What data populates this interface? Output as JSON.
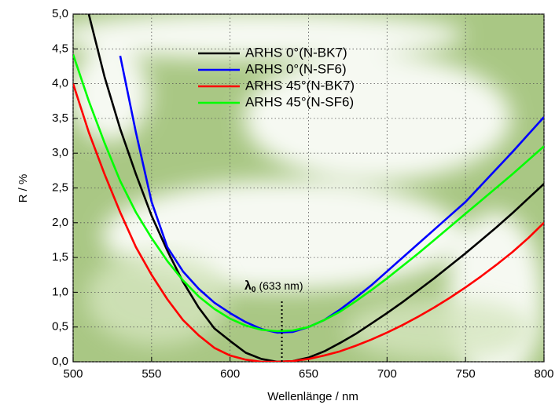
{
  "chart_data": {
    "type": "line",
    "x_label": "Wellenlänge / nm",
    "y_label": "R / %",
    "x": [
      500,
      510,
      520,
      530,
      540,
      550,
      560,
      570,
      580,
      590,
      600,
      610,
      620,
      630,
      640,
      650,
      660,
      670,
      680,
      690,
      700,
      710,
      720,
      730,
      740,
      750,
      760,
      770,
      780,
      790,
      800
    ],
    "series": [
      {
        "name": "ARHS 0°(N-BK7)",
        "color": "#000000",
        "values": [
          null,
          5.0,
          4.1,
          3.35,
          2.7,
          2.1,
          1.6,
          1.15,
          0.78,
          0.48,
          0.3,
          0.13,
          0.04,
          0.0,
          0.01,
          0.06,
          0.15,
          0.27,
          0.4,
          0.55,
          0.7,
          0.86,
          1.03,
          1.2,
          1.38,
          1.56,
          1.75,
          1.94,
          2.14,
          2.35,
          2.56
        ]
      },
      {
        "name": "ARHS 0°(N-SF6)",
        "color": "#0000ff",
        "values": [
          null,
          null,
          null,
          4.4,
          3.3,
          2.3,
          1.65,
          1.3,
          1.05,
          0.85,
          0.7,
          0.57,
          0.47,
          0.42,
          0.43,
          0.5,
          0.6,
          0.75,
          0.92,
          1.1,
          1.3,
          1.5,
          1.7,
          1.9,
          2.1,
          2.3,
          2.54,
          2.78,
          3.02,
          3.27,
          3.52
        ]
      },
      {
        "name": "ARHS 45°(N-BK7)",
        "color": "#ff0000",
        "values": [
          4.0,
          3.3,
          2.7,
          2.15,
          1.65,
          1.25,
          0.9,
          0.6,
          0.38,
          0.2,
          0.09,
          0.03,
          0.0,
          0.0,
          0.01,
          0.04,
          0.09,
          0.15,
          0.23,
          0.32,
          0.42,
          0.53,
          0.65,
          0.78,
          0.92,
          1.07,
          1.23,
          1.4,
          1.58,
          1.78,
          2.0
        ]
      },
      {
        "name": "ARHS 45°(N-SF6)",
        "color": "#00ff00",
        "values": [
          4.42,
          3.75,
          3.15,
          2.6,
          2.15,
          1.78,
          1.45,
          1.17,
          0.94,
          0.76,
          0.62,
          0.52,
          0.46,
          0.44,
          0.45,
          0.5,
          0.6,
          0.72,
          0.87,
          1.03,
          1.2,
          1.38,
          1.56,
          1.75,
          1.94,
          2.13,
          2.32,
          2.51,
          2.7,
          2.9,
          3.1
        ]
      }
    ],
    "xlim": [
      500,
      800
    ],
    "ylim": [
      0,
      5
    ],
    "xticks": [
      500,
      550,
      600,
      650,
      700,
      750,
      800
    ],
    "yticks": [
      {
        "value": 0,
        "label": "0,0"
      },
      {
        "value": 0.5,
        "label": "0,5"
      },
      {
        "value": 1,
        "label": "1,0"
      },
      {
        "value": 1.5,
        "label": "1,5"
      },
      {
        "value": 2,
        "label": "2,0"
      },
      {
        "value": 2.5,
        "label": "2,5"
      },
      {
        "value": 3,
        "label": "3,0"
      },
      {
        "value": 3.5,
        "label": "3,5"
      },
      {
        "value": 4,
        "label": "4,0"
      },
      {
        "value": 4.5,
        "label": "4,5"
      },
      {
        "value": 5,
        "label": "5,0"
      }
    ],
    "grid": true,
    "annotation": {
      "symbol": "λ",
      "subscript": "0",
      "text": "(633 nm)",
      "x": 633
    }
  }
}
